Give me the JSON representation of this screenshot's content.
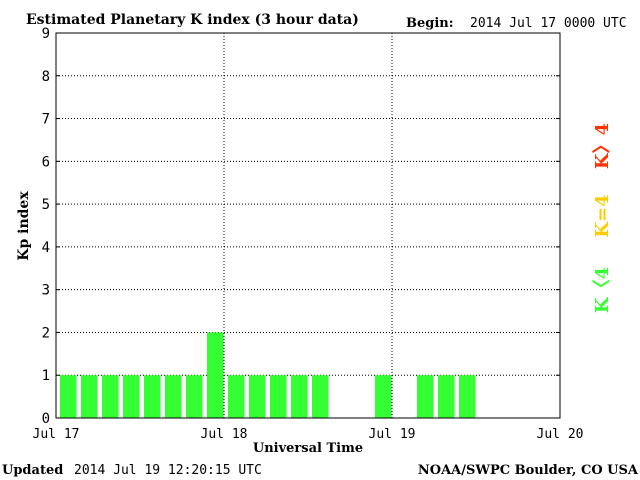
{
  "header": {
    "title": "Estimated Planetary K index (3 hour data)",
    "begin_label": "Begin:",
    "begin_value": "2014 Jul 17 0000 UTC"
  },
  "footer": {
    "updated_label": "Updated",
    "updated_value": "2014 Jul 19 12:20:15 UTC",
    "source": "NOAA/SWPC Boulder, CO USA"
  },
  "legend": {
    "above": "K〉4",
    "equal": "K=4",
    "below": "K〈4"
  },
  "colors": {
    "below": "#33ff33",
    "equal": "#ffcc00",
    "above": "#ff3300"
  },
  "chart_data": {
    "type": "bar",
    "title": "Estimated Planetary K index (3 hour data)",
    "xlabel": "Universal Time",
    "ylabel": "Kp index",
    "ylim": [
      0,
      9
    ],
    "yticks": [
      "0",
      "1",
      "2",
      "3",
      "4",
      "5",
      "6",
      "7",
      "8",
      "9"
    ],
    "grid": true,
    "xticks": [
      "Jul 17",
      "Jul 18",
      "Jul 19",
      "Jul 20"
    ],
    "interval_hours": 3,
    "values": [
      1,
      1,
      1,
      1,
      1,
      1,
      1,
      2,
      1,
      1,
      1,
      1,
      1,
      null,
      null,
      1,
      null,
      1,
      1,
      1,
      null,
      null,
      null,
      null
    ]
  }
}
